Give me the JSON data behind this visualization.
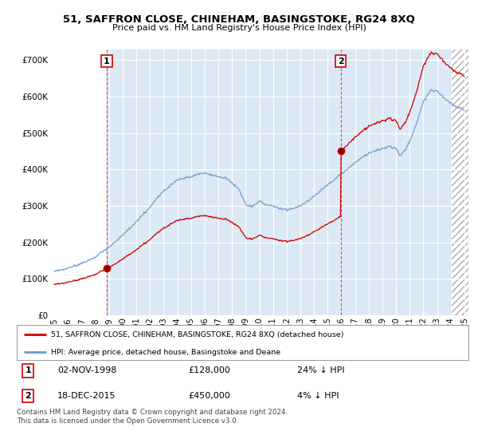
{
  "title": "51, SAFFRON CLOSE, CHINEHAM, BASINGSTOKE, RG24 8XQ",
  "subtitle": "Price paid vs. HM Land Registry's House Price Index (HPI)",
  "background_color": "#ffffff",
  "plot_bg_color": "#dce9f5",
  "plot_bg_color_before": "#ffffff",
  "grid_color": "#ffffff",
  "yticks": [
    0,
    100000,
    200000,
    300000,
    400000,
    500000,
    600000,
    700000
  ],
  "ytick_labels": [
    "£0",
    "£100K",
    "£200K",
    "£300K",
    "£400K",
    "£500K",
    "£600K",
    "£700K"
  ],
  "ylim": [
    0,
    730000
  ],
  "xlim_start": 1994.7,
  "xlim_end": 2025.3,
  "xtick_years": [
    1995,
    1996,
    1997,
    1998,
    1999,
    2000,
    2001,
    2002,
    2003,
    2004,
    2005,
    2006,
    2007,
    2008,
    2009,
    2010,
    2011,
    2012,
    2013,
    2014,
    2015,
    2016,
    2017,
    2018,
    2019,
    2020,
    2021,
    2022,
    2023,
    2024,
    2025
  ],
  "sale1_x": 1998.84,
  "sale1_y": 128000,
  "sale1_label": "1",
  "sale2_x": 2015.96,
  "sale2_y": 450000,
  "sale2_label": "2",
  "legend_label1": "51, SAFFRON CLOSE, CHINEHAM, BASINGSTOKE, RG24 8XQ (detached house)",
  "legend_label2": "HPI: Average price, detached house, Basingstoke and Deane",
  "ann1_date": "02-NOV-1998",
  "ann1_price": "£128,000",
  "ann1_hpi": "24% ↓ HPI",
  "ann2_date": "18-DEC-2015",
  "ann2_price": "£450,000",
  "ann2_hpi": "4% ↓ HPI",
  "footer": "Contains HM Land Registry data © Crown copyright and database right 2024.\nThis data is licensed under the Open Government Licence v3.0.",
  "line_color_hpi": "#6699cc",
  "line_color_price": "#cc0000",
  "dashed_color": "#cc0000",
  "hatch_start": 2024.0,
  "hatch_color": "#aaaaaa"
}
